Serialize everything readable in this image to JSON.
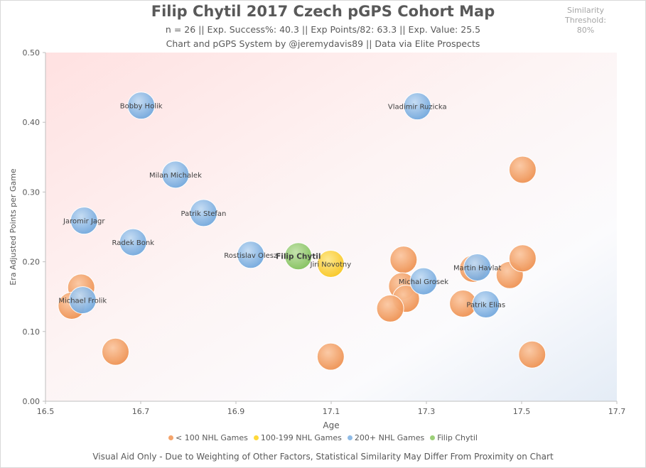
{
  "header": {
    "title": "Filip Chytil 2017 Czech pGPS Cohort Map",
    "subtitle1": "n = 26 || Exp. Success%: 40.3 || Exp Points/82: 63.3 || Exp. Value: 25.5",
    "subtitle2": "Chart and pGPS System by @jeremydavis89 || Data via Elite Prospects",
    "threshold_label": "Similarity Threshold:",
    "threshold_value": "80%"
  },
  "footer": "Visual Aid Only - Due to Weighting of Other Factors, Statistical Similarity May Differ From Proximity on Chart",
  "colors": {
    "lt100": "#f4a46c",
    "mid": "#ffd93a",
    "gt200": "#8fbbe6",
    "chytil": "#9ccf78"
  },
  "chart_data": {
    "type": "scatter",
    "xlabel": "Age",
    "ylabel": "Era Adjusted Points per Game",
    "xlim": [
      16.5,
      17.7
    ],
    "ylim": [
      0.0,
      0.5
    ],
    "x_ticks": [
      "16.5",
      "16.7",
      "16.9",
      "17.1",
      "17.3",
      "17.5",
      "17.7"
    ],
    "y_ticks": [
      "0.00",
      "0.10",
      "0.20",
      "0.30",
      "0.40",
      "0.50"
    ],
    "legend_position": "bottom",
    "series": [
      {
        "name": "< 100 NHL Games",
        "color_key": "lt100",
        "points": [
          {
            "x": 16.575,
            "y": 0.163,
            "label": ""
          },
          {
            "x": 16.555,
            "y": 0.137,
            "label": ""
          },
          {
            "x": 16.647,
            "y": 0.071,
            "label": ""
          },
          {
            "x": 17.099,
            "y": 0.064,
            "label": ""
          },
          {
            "x": 17.252,
            "y": 0.203,
            "label": ""
          },
          {
            "x": 17.249,
            "y": 0.165,
            "label": ""
          },
          {
            "x": 17.257,
            "y": 0.147,
            "label": ""
          },
          {
            "x": 17.224,
            "y": 0.133,
            "label": ""
          },
          {
            "x": 17.377,
            "y": 0.14,
            "label": ""
          },
          {
            "x": 17.398,
            "y": 0.19,
            "label": ""
          },
          {
            "x": 17.475,
            "y": 0.181,
            "label": ""
          },
          {
            "x": 17.502,
            "y": 0.205,
            "label": ""
          },
          {
            "x": 17.502,
            "y": 0.332,
            "label": ""
          },
          {
            "x": 17.522,
            "y": 0.067,
            "label": ""
          }
        ]
      },
      {
        "name": "100-199 NHL Games",
        "color_key": "mid",
        "points": [
          {
            "x": 17.099,
            "y": 0.197,
            "label": "Jiri Novotny"
          }
        ]
      },
      {
        "name": "200+ NHL Games",
        "color_key": "gt200",
        "points": [
          {
            "x": 16.701,
            "y": 0.424,
            "label": "Bobby Holik"
          },
          {
            "x": 17.281,
            "y": 0.423,
            "label": "Vladimir Ruzicka"
          },
          {
            "x": 16.773,
            "y": 0.325,
            "label": "Milan Michalek"
          },
          {
            "x": 16.832,
            "y": 0.27,
            "label": "Patrik Stefan"
          },
          {
            "x": 16.581,
            "y": 0.259,
            "label": "Jaromir Jagr"
          },
          {
            "x": 16.684,
            "y": 0.228,
            "label": "Radek Bonk"
          },
          {
            "x": 16.931,
            "y": 0.21,
            "label": "Rostislav Olesz"
          },
          {
            "x": 17.407,
            "y": 0.192,
            "label": "Martin Havlat"
          },
          {
            "x": 17.294,
            "y": 0.172,
            "label": "Michal Grosek"
          },
          {
            "x": 17.425,
            "y": 0.139,
            "label": "Patrik Elias"
          },
          {
            "x": 16.578,
            "y": 0.145,
            "label": "Michael Frolik"
          }
        ]
      },
      {
        "name": "Filip Chytil",
        "color_key": "chytil",
        "points": [
          {
            "x": 17.031,
            "y": 0.208,
            "label": "Filip Chytil"
          }
        ]
      }
    ]
  }
}
